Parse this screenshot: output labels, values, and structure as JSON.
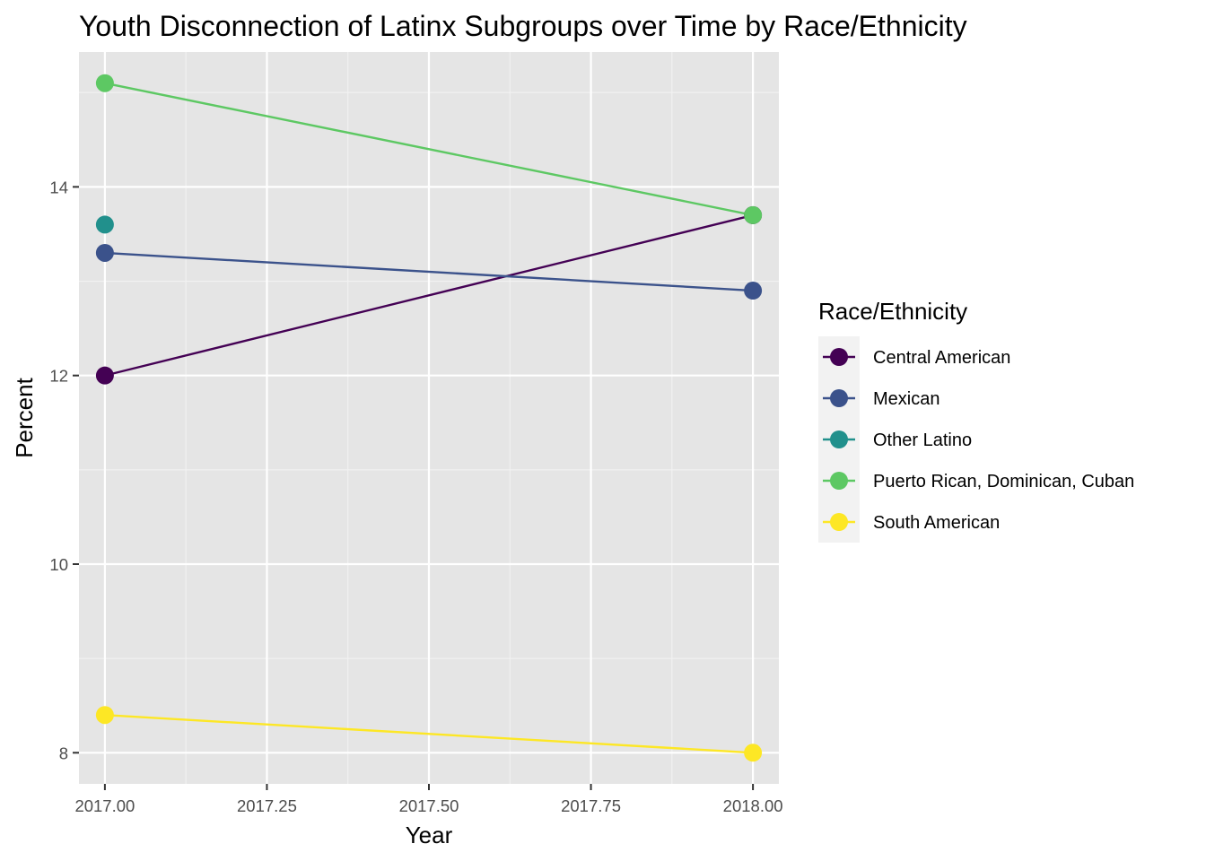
{
  "chart_data": {
    "type": "line",
    "title": "Youth Disconnection of Latinx Subgroups over Time by Race/Ethnicity",
    "xlabel": "Year",
    "ylabel": "Percent",
    "xlim": [
      1996.96,
      2018.04
    ],
    "ylim": [
      7.67,
      15.43
    ],
    "x_ticks": [
      2017.0,
      2017.25,
      2017.5,
      2017.75,
      2018.0
    ],
    "x_tick_labels": [
      "2017.00",
      "2017.25",
      "2017.50",
      "2017.75",
      "2018.00"
    ],
    "y_ticks": [
      8,
      10,
      12,
      14
    ],
    "y_tick_labels": [
      "8",
      "10",
      "12",
      "14"
    ],
    "grid": true,
    "legend": {
      "title": "Race/Ethnicity",
      "position": "right"
    },
    "series": [
      {
        "name": "Central American",
        "color": "#440154",
        "points": [
          [
            2017,
            12.0
          ],
          [
            2018,
            13.7
          ]
        ]
      },
      {
        "name": "Mexican",
        "color": "#3B528B",
        "points": [
          [
            2017,
            13.3
          ],
          [
            2018,
            12.9
          ]
        ]
      },
      {
        "name": "Other Latino",
        "color": "#21908C",
        "points": [
          [
            2017,
            13.6
          ]
        ]
      },
      {
        "name": "Puerto Rican, Dominican, Cuban",
        "color": "#5DC863",
        "points": [
          [
            2017,
            15.1
          ],
          [
            2018,
            13.7
          ]
        ]
      },
      {
        "name": "South American",
        "color": "#FDE725",
        "points": [
          [
            2017,
            8.4
          ],
          [
            2018,
            8.0
          ]
        ]
      }
    ]
  }
}
